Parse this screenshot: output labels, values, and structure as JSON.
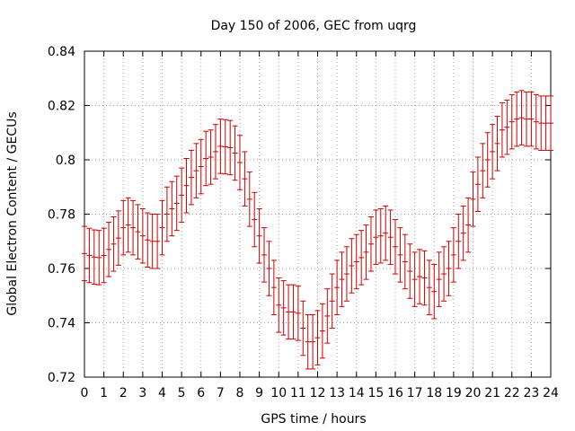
{
  "chart_data": {
    "type": "scatter",
    "title": "Day 150 of 2006, GEC from uqrg",
    "xlabel": "GPS time / hours",
    "ylabel": "Global Electron Content / GECUs",
    "xlim": [
      0,
      24
    ],
    "ylim": [
      0.72,
      0.84
    ],
    "grid": true,
    "legend": "none",
    "error_bars": true,
    "error_half_width": 0.01,
    "x_ticks": [
      0,
      1,
      2,
      3,
      4,
      5,
      6,
      7,
      8,
      9,
      10,
      11,
      12,
      13,
      14,
      15,
      16,
      17,
      18,
      19,
      20,
      21,
      22,
      23,
      24
    ],
    "y_ticks": [
      0.72,
      0.74,
      0.76,
      0.78,
      0.8,
      0.82,
      0.84
    ],
    "tick_labels_x": [
      "0",
      "1",
      "2",
      "3",
      "4",
      "5",
      "6",
      "7",
      "8",
      "9",
      "10",
      "11",
      "12",
      "13",
      "14",
      "15",
      "16",
      "17",
      "18",
      "19",
      "20",
      "21",
      "22",
      "23",
      "24"
    ],
    "tick_labels_y": [
      "0.72",
      "0.74",
      "0.76",
      "0.78",
      "0.8",
      "0.82",
      "0.84"
    ],
    "series": [
      {
        "x": [
          0.0,
          0.25,
          0.5,
          0.75,
          1.0,
          1.25,
          1.5,
          1.75,
          2.0,
          2.25,
          2.5,
          2.75,
          3.0,
          3.25,
          3.5,
          3.75,
          4.0,
          4.25,
          4.5,
          4.75,
          5.0,
          5.25,
          5.5,
          5.75,
          6.0,
          6.25,
          6.5,
          6.75,
          7.0,
          7.25,
          7.5,
          7.75,
          8.0,
          8.25,
          8.5,
          8.75,
          9.0,
          9.25,
          9.5,
          9.75,
          10.0,
          10.25,
          10.5,
          10.75,
          11.0,
          11.25,
          11.5,
          11.75,
          12.0,
          12.25,
          12.5,
          12.75,
          13.0,
          13.25,
          13.5,
          13.75,
          14.0,
          14.25,
          14.5,
          14.75,
          15.0,
          15.25,
          15.5,
          15.75,
          16.0,
          16.25,
          16.5,
          16.75,
          17.0,
          17.25,
          17.5,
          17.75,
          18.0,
          18.25,
          18.5,
          18.75,
          19.0,
          19.25,
          19.5,
          19.75,
          20.0,
          20.25,
          20.5,
          20.75,
          21.0,
          21.25,
          21.5,
          21.75,
          22.0,
          22.25,
          22.5,
          22.75,
          23.0,
          23.25,
          23.5,
          23.75,
          24.0
        ],
        "y": [
          0.7655,
          0.7648,
          0.7642,
          0.764,
          0.7648,
          0.767,
          0.769,
          0.7712,
          0.775,
          0.776,
          0.775,
          0.7735,
          0.772,
          0.7705,
          0.77,
          0.77,
          0.775,
          0.78,
          0.782,
          0.784,
          0.787,
          0.7905,
          0.7935,
          0.796,
          0.7975,
          0.8005,
          0.801,
          0.803,
          0.805,
          0.8048,
          0.8045,
          0.8025,
          0.799,
          0.793,
          0.7855,
          0.778,
          0.772,
          0.765,
          0.76,
          0.753,
          0.7465,
          0.7455,
          0.744,
          0.744,
          0.7435,
          0.738,
          0.733,
          0.733,
          0.7345,
          0.737,
          0.7425,
          0.748,
          0.753,
          0.756,
          0.758,
          0.761,
          0.7625,
          0.764,
          0.766,
          0.769,
          0.7715,
          0.772,
          0.773,
          0.7715,
          0.768,
          0.765,
          0.7625,
          0.759,
          0.756,
          0.757,
          0.7565,
          0.753,
          0.7515,
          0.756,
          0.758,
          0.76,
          0.765,
          0.77,
          0.773,
          0.776,
          0.7855,
          0.791,
          0.796,
          0.8,
          0.803,
          0.806,
          0.811,
          0.812,
          0.814,
          0.815,
          0.8155,
          0.815,
          0.815,
          0.814,
          0.8135,
          0.8135,
          0.8135
        ]
      }
    ]
  }
}
